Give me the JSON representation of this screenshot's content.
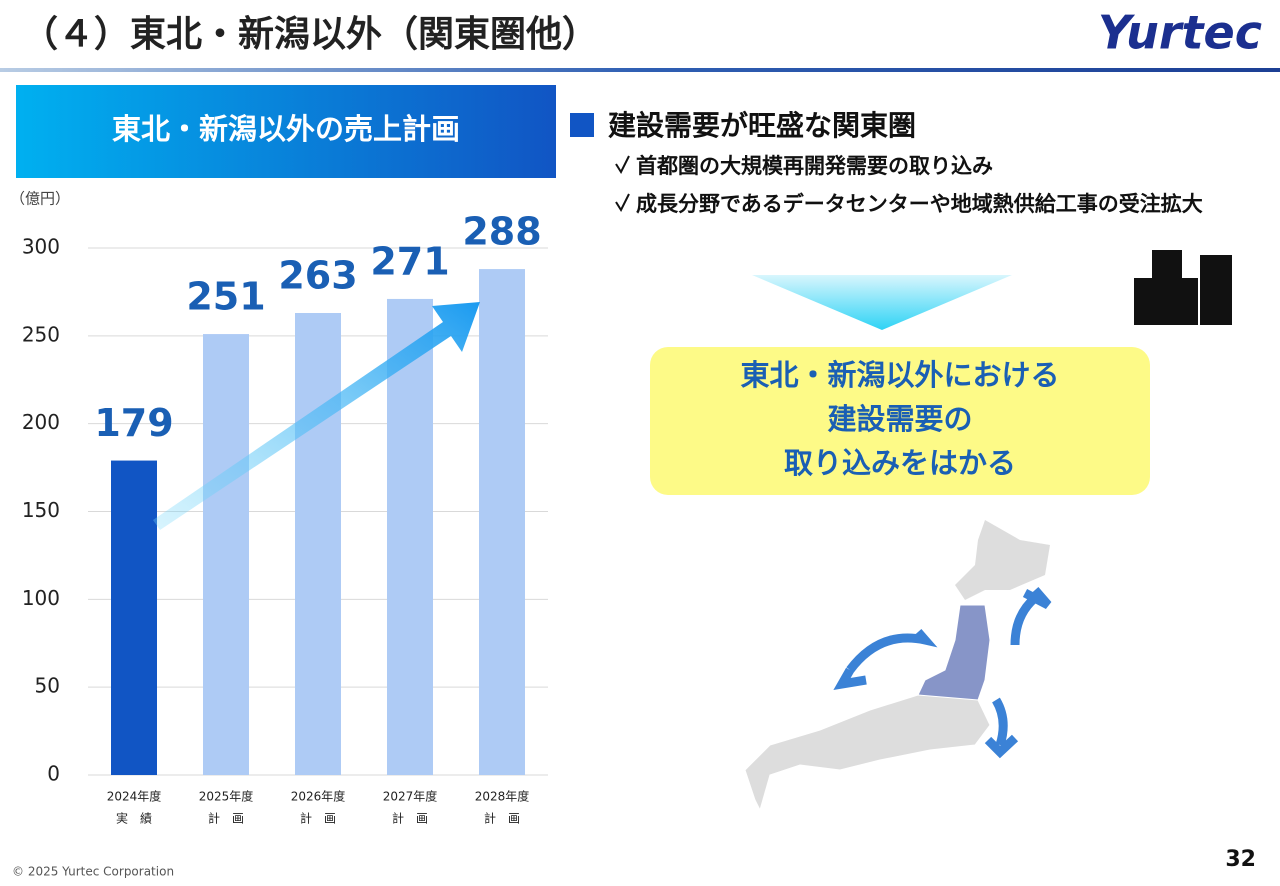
{
  "header": {
    "title": "（４）東北・新潟以外（関東圏他）",
    "logo": "Yurtec"
  },
  "chart_data": {
    "type": "bar",
    "title": "東北・新潟以外の売上計画",
    "unit_label": "（億円）",
    "categories": [
      "2024年度",
      "2025年度",
      "2026年度",
      "2027年度",
      "2028年度"
    ],
    "category_notes": [
      "実　績",
      "計　画",
      "計　画",
      "計　画",
      "計　画"
    ],
    "values": [
      179,
      251,
      263,
      271,
      288
    ],
    "colors": [
      "#1155c4",
      "#aecbf5",
      "#aecbf5",
      "#aecbf5",
      "#aecbf5"
    ],
    "value_label_color": "#1a5fb4",
    "ylim": [
      0,
      300
    ],
    "yticks": [
      0,
      50,
      100,
      150,
      200,
      250,
      300
    ],
    "grid": true
  },
  "section": {
    "heading": "建設需要が旺盛な関東圏",
    "bullets": [
      "首都圏の大規模再開発需要の取り込み",
      "成長分野であるデータセンターや地域熱供給工事の受注拡大"
    ]
  },
  "callout": {
    "lines": [
      "東北・新潟以外における",
      "建設需要の",
      "取り込みをはかる"
    ]
  },
  "footer": {
    "copyright": "© 2025 Yurtec Corporation",
    "page": "32"
  }
}
